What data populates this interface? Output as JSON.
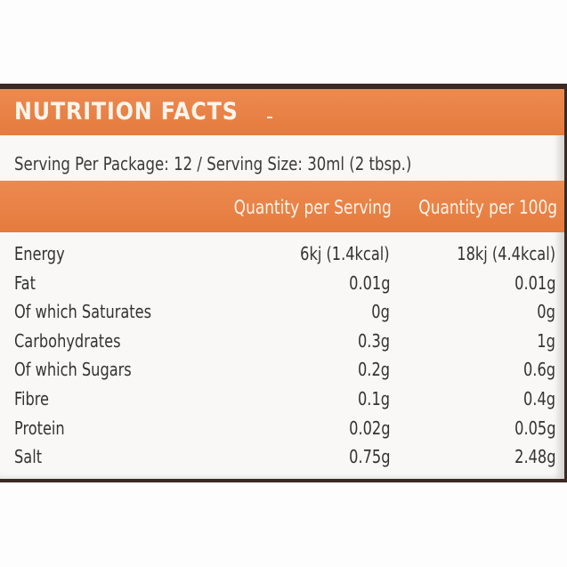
{
  "label": {
    "title": "NUTRITION FACTS",
    "serving_line": "Serving Per Package: 12  /  Serving Size: 30ml (2 tbsp.)",
    "columns": [
      "Quantity per Serving",
      "Quantity per 100g"
    ],
    "rows": [
      {
        "name": "Energy",
        "per_serving": "6kj (1.4kcal)",
        "per_100g": "18kj (4.4kcal)"
      },
      {
        "name": "Fat",
        "per_serving": "0.01g",
        "per_100g": "0.01g"
      },
      {
        "name": "Of which Saturates",
        "per_serving": "0g",
        "per_100g": "0g"
      },
      {
        "name": "Carbohydrates",
        "per_serving": "0.3g",
        "per_100g": "1g"
      },
      {
        "name": "Of which Sugars",
        "per_serving": "0.2g",
        "per_100g": "0.6g"
      },
      {
        "name": "Fibre",
        "per_serving": "0.1g",
        "per_100g": "0.4g"
      },
      {
        "name": "Protein",
        "per_serving": "0.02g",
        "per_100g": "0.05g"
      },
      {
        "name": "Salt",
        "per_serving": "0.75g",
        "per_100g": "2.48g"
      }
    ]
  },
  "colors": {
    "accent": "#e8824a",
    "bottle": "#3b2a22",
    "text": "#333333"
  }
}
